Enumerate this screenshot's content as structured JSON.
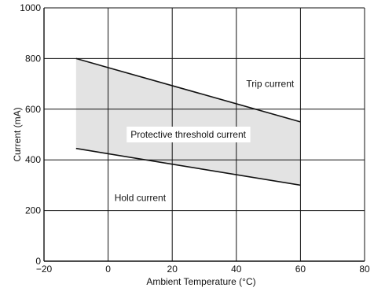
{
  "chart_data": {
    "type": "area",
    "title": "",
    "xlabel": "Ambient Temperature (°C)",
    "ylabel": "Current (mA)",
    "xlim": [
      -20,
      80
    ],
    "ylim": [
      0,
      1000
    ],
    "xticks": [
      -20,
      0,
      20,
      40,
      60,
      80
    ],
    "xtick_labels": [
      "−20",
      "0",
      "20",
      "40",
      "60",
      "80"
    ],
    "yticks": [
      0,
      200,
      400,
      600,
      800,
      1000
    ],
    "ytick_labels": [
      "0",
      "200",
      "400",
      "600",
      "800",
      "1000"
    ],
    "grid": true,
    "series": [
      {
        "x": [
          -10,
          60
        ],
        "y": [
          800,
          550
        ]
      },
      {
        "x": [
          -10,
          60
        ],
        "y": [
          445,
          300
        ]
      }
    ],
    "shaded_band": {
      "x": [
        -10,
        60
      ],
      "fill": "#e3e3e3"
    },
    "annotations": [
      {
        "text": "Trip current",
        "x": 58,
        "y": 700,
        "anchor": "end"
      },
      {
        "text": "Protective threshold current",
        "x": 25,
        "y": 500,
        "anchor": "middle"
      },
      {
        "text": "Hold current",
        "x": 10,
        "y": 250,
        "anchor": "middle"
      }
    ],
    "colors": {
      "line": "#111111",
      "grid": "#111111",
      "band": "#e3e3e3",
      "label_box": "#ffffff"
    }
  }
}
